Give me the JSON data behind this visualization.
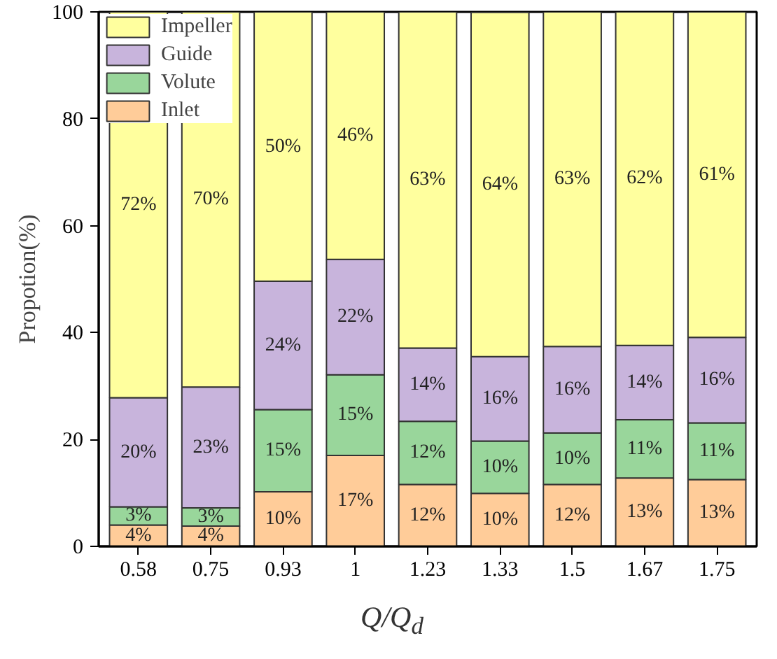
{
  "chart_data": {
    "type": "bar",
    "stacked": true,
    "xlabel": "Q/Q$_{d}$",
    "ylabel": "Propotion(%)",
    "categories": [
      "0.58",
      "0.75",
      "0.93",
      "1",
      "1.23",
      "1.33",
      "1.5",
      "1.67",
      "1.75"
    ],
    "ylim": [
      0,
      100
    ],
    "yticks": [
      0,
      20,
      40,
      60,
      80,
      100
    ],
    "grid": false,
    "legend": "top left",
    "series": [
      {
        "name": "Inlet",
        "color": "#ffcc99",
        "values": [
          4.0,
          3.8,
          10.2,
          17.0,
          11.6,
          9.9,
          11.6,
          12.8,
          12.5
        ],
        "value_labels": [
          "4%",
          "4%",
          "10%",
          "17%",
          "12%",
          "10%",
          "12%",
          "13%",
          "13%"
        ]
      },
      {
        "name": "Volute",
        "color": "#99d69b",
        "values": [
          3.4,
          3.4,
          15.4,
          15.1,
          11.8,
          9.8,
          9.6,
          10.9,
          10.6
        ],
        "value_labels": [
          "3%",
          "3%",
          "15%",
          "15%",
          "12%",
          "10%",
          "10%",
          "11%",
          "11%"
        ]
      },
      {
        "name": "Guide",
        "color": "#c8b4dc",
        "values": [
          20.4,
          22.6,
          24.0,
          21.6,
          13.7,
          15.8,
          16.2,
          13.9,
          16.0
        ],
        "value_labels": [
          "20%",
          "23%",
          "24%",
          "22%",
          "14%",
          "16%",
          "16%",
          "14%",
          "16%"
        ]
      },
      {
        "name": "Impeller",
        "color": "#ffff9e",
        "values": [
          72.2,
          70.2,
          50.4,
          46.3,
          62.9,
          64.4,
          62.6,
          62.4,
          60.9
        ],
        "value_labels": [
          "72%",
          "70%",
          "50%",
          "46%",
          "63%",
          "64%",
          "63%",
          "62%",
          "61%"
        ]
      }
    ]
  }
}
